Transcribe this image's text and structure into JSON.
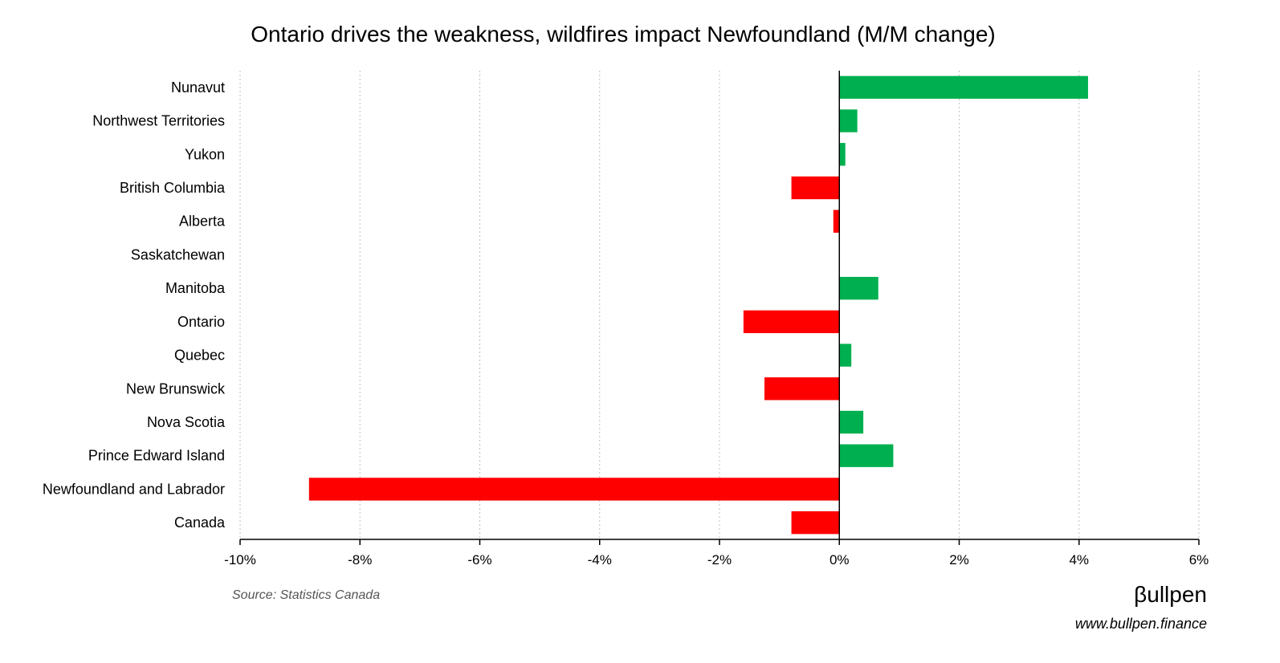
{
  "chart_data": {
    "type": "bar",
    "orientation": "horizontal",
    "title": "Ontario drives the weakness, wildfires impact Newfoundland (M/M change)",
    "categories": [
      "Nunavut",
      "Northwest Territories",
      "Yukon",
      "British Columbia",
      "Alberta",
      "Saskatchewan",
      "Manitoba",
      "Ontario",
      "Quebec",
      "New Brunswick",
      "Nova Scotia",
      "Prince Edward Island",
      "Newfoundland and Labrador",
      "Canada"
    ],
    "values": [
      4.15,
      0.3,
      0.1,
      -0.8,
      -0.1,
      0.0,
      0.65,
      -1.6,
      0.2,
      -1.25,
      0.4,
      0.9,
      -8.85,
      -0.8
    ],
    "units": "%",
    "xlim": [
      -10,
      6
    ],
    "xticks": [
      -10,
      -8,
      -6,
      -4,
      -2,
      0,
      2,
      4,
      6
    ],
    "xtick_labels": [
      "-10%",
      "-8%",
      "-6%",
      "-4%",
      "-2%",
      "0%",
      "2%",
      "4%",
      "6%"
    ],
    "grid": "vertical dotted",
    "legend": "none",
    "colors": {
      "positive": "#00b050",
      "negative": "#ff0000",
      "grid": "#bfbfbf",
      "axis": "#000000"
    }
  },
  "source": "Source: Statistics Canada",
  "brand": {
    "logo_text": "βullpen",
    "website": "www.bullpen.finance"
  }
}
